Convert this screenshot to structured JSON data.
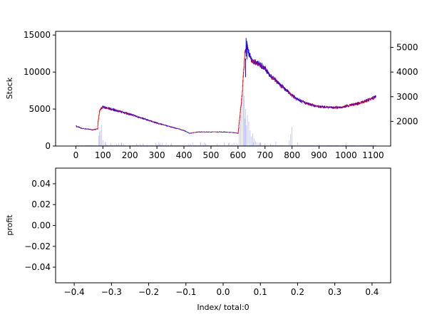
{
  "chart_data": [
    {
      "type": "candlestick",
      "ylabel": "Stock",
      "xlim": [
        -75,
        1165
      ],
      "ylim": [
        0,
        15500
      ],
      "y2lim": [
        1000,
        5650
      ],
      "x_ticks": [
        0,
        100,
        200,
        300,
        400,
        500,
        600,
        700,
        800,
        900,
        1000,
        1100
      ],
      "y_ticks": [
        0,
        5000,
        10000,
        15000
      ],
      "y2_ticks": [
        2000,
        3000,
        4000,
        5000
      ],
      "colors": {
        "up": "#ff0000",
        "down": "#0000ff",
        "volume": "#aaaaff"
      },
      "price_anchors": {
        "x": [
          0,
          20,
          40,
          60,
          80,
          82,
          88,
          100,
          120,
          150,
          180,
          200,
          250,
          300,
          350,
          400,
          420,
          450,
          500,
          550,
          590,
          600,
          615,
          625,
          632,
          650,
          680,
          700,
          720,
          750,
          780,
          800,
          820,
          850,
          880,
          900,
          950,
          980,
          1000,
          1050,
          1080,
          1100,
          1110
        ],
        "y": [
          2700,
          2400,
          2300,
          2200,
          2300,
          3300,
          4800,
          5300,
          5100,
          4800,
          4500,
          4300,
          3700,
          3100,
          2600,
          2100,
          1700,
          1900,
          1900,
          1900,
          1800,
          1700,
          7000,
          12500,
          13500,
          11500,
          11000,
          10500,
          9500,
          8500,
          7500,
          6800,
          6300,
          5800,
          5500,
          5300,
          5200,
          5200,
          5400,
          5800,
          6200,
          6500,
          6700
        ]
      },
      "volume_spikes": {
        "x": [
          85,
          88,
          90,
          95,
          100,
          110,
          130,
          150,
          200,
          300,
          340,
          400,
          600,
          605,
          610,
          615,
          620,
          623,
          625,
          628,
          630,
          635,
          640,
          645,
          650,
          655,
          660,
          665,
          670,
          700,
          720,
          740,
          790,
          795,
          800,
          820,
          900,
          1000,
          1100
        ],
        "y": [
          1400,
          1950,
          2100,
          2900,
          800,
          500,
          400,
          300,
          200,
          200,
          150,
          200,
          200,
          2600,
          4100,
          6200,
          7300,
          6800,
          3700,
          5000,
          2800,
          4200,
          3300,
          2100,
          1300,
          1700,
          1000,
          700,
          500,
          400,
          300,
          600,
          800,
          1600,
          2600,
          500,
          200,
          200,
          200
        ]
      }
    },
    {
      "type": "line",
      "ylabel": "profit",
      "xlabel": "Index/ total:0",
      "xlim": [
        -0.45,
        0.45
      ],
      "ylim": [
        -0.055,
        0.055
      ],
      "x_ticks": [
        -0.4,
        -0.3,
        -0.2,
        -0.1,
        0.0,
        0.1,
        0.2,
        0.3,
        0.4
      ],
      "y_ticks": [
        -0.04,
        -0.02,
        0.0,
        0.02,
        0.04
      ],
      "x": [],
      "y": []
    }
  ]
}
